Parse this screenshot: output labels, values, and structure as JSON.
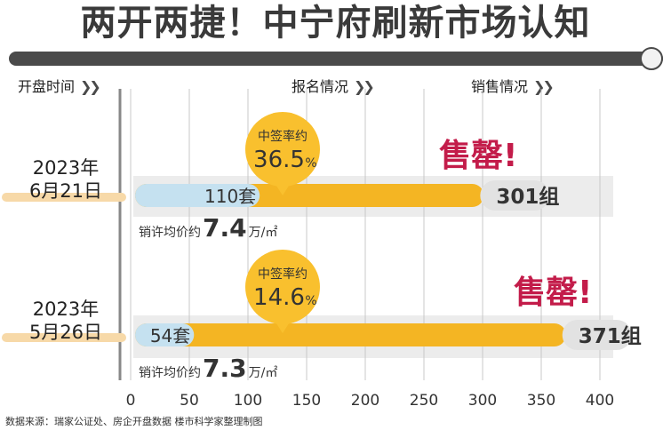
{
  "title": "两开两捷！中宁府刷新市场认知",
  "headers": {
    "col1": "开盘时间",
    "col2": "报名情况",
    "col3": "销售情况"
  },
  "chevrons": "❯❯",
  "rows": [
    {
      "date_line1": "2023年",
      "date_line2": "6月21日",
      "tag": "售罄!",
      "rate_label": "中签率约",
      "rate_value": "36.5",
      "rate_unit": "%",
      "price_prefix": "销许均价约",
      "price_value": "7.4",
      "price_unit": "万/㎡"
    },
    {
      "date_line1": "2023年",
      "date_line2": "5月26日",
      "tag": "售罄!",
      "rate_label": "中签率约",
      "rate_value": "14.6",
      "rate_unit": "%",
      "price_prefix": "销许均价约",
      "price_value": "7.3",
      "price_unit": "万/㎡"
    }
  ],
  "source": "数据来源：瑞家公证处、房企开盘数据 楼市科学家整理制图",
  "colors": {
    "registered_bar": "#f4b523",
    "supply_bar": "#c5e1f0",
    "tag": "#c31c4a",
    "grid": "#c8c8c8",
    "band": "#ececec"
  },
  "chart_data": {
    "type": "bar",
    "orientation": "horizontal",
    "categories": [
      "2023年6月21日",
      "2023年5月26日"
    ],
    "series": [
      {
        "values": [
          110,
          54
        ],
        "labels": [
          "110套",
          "54套"
        ]
      },
      {
        "values": [
          301,
          371
        ],
        "labels": [
          "301组",
          "371组"
        ]
      }
    ],
    "subscription_rate_percent": [
      36.5,
      14.6
    ],
    "avg_price_wan_per_sqm": [
      7.4,
      7.3
    ],
    "xlim": [
      0,
      400
    ],
    "xticks": [
      0,
      50,
      100,
      150,
      200,
      250,
      300,
      350,
      400
    ],
    "grid": true,
    "title": "两开两捷！中宁府刷新市场认知"
  }
}
